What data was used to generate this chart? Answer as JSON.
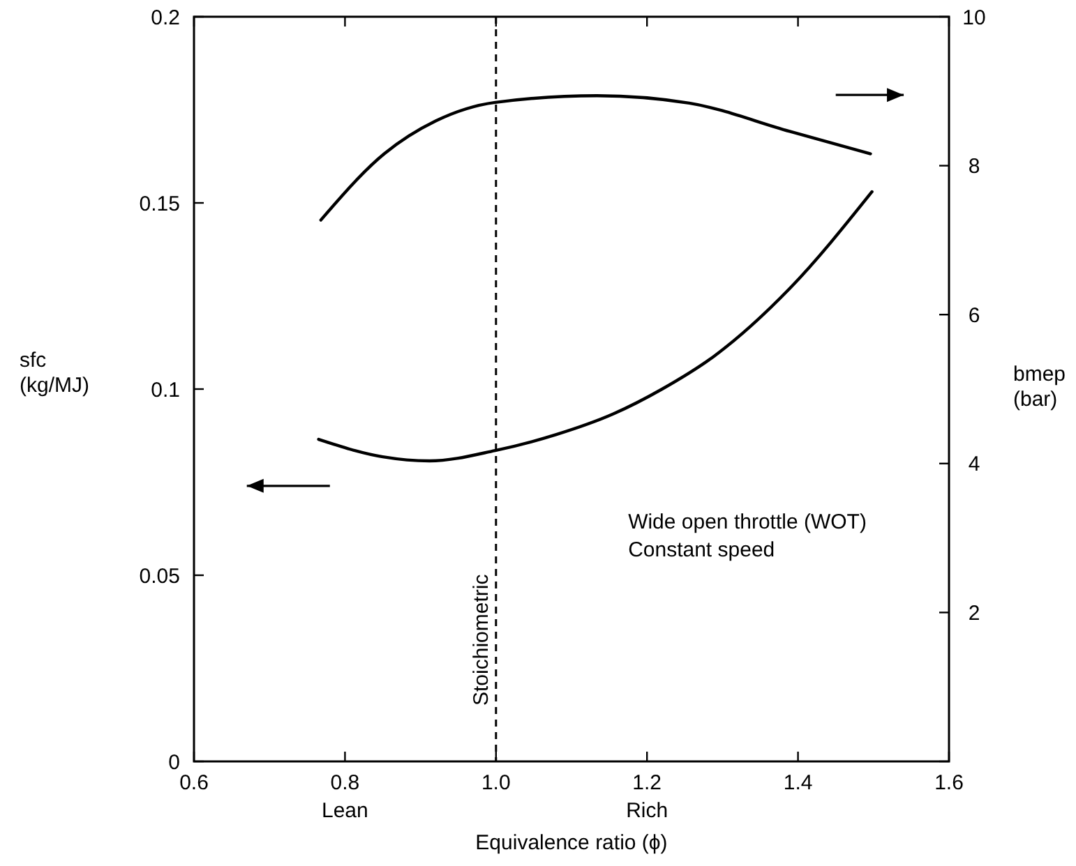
{
  "chart_data": {
    "type": "line",
    "xlabel": "Equivalence ratio (ϕ)",
    "ylabel": "sfc\n(kg/MJ)",
    "y2label": "bmep\n(bar)",
    "xlim": [
      0.6,
      1.6
    ],
    "xticks": [
      0.6,
      0.8,
      {
        "value": 1.0,
        "label": "1.0"
      },
      1.2,
      1.4,
      1.6
    ],
    "ylim": [
      0,
      0.2
    ],
    "yticks": [
      0,
      0.05,
      0.1,
      0.15,
      0.2
    ],
    "y2lim": [
      0,
      10
    ],
    "y2ticks": [
      {
        "value": 0,
        "label": null
      },
      2,
      4,
      6,
      8,
      10
    ],
    "series": [
      {
        "color": "#000000",
        "x": [
          0.765,
          0.85,
          0.912,
          0.999,
          1.08,
          1.155,
          1.22,
          1.29,
          1.389,
          1.498
        ],
        "values": [
          0.0865,
          0.0818,
          0.0807,
          0.0835,
          0.0878,
          0.0933,
          0.1,
          0.109,
          0.127,
          0.153
        ]
      },
      {
        "color": "#000000",
        "axis": "y2",
        "x": [
          0.768,
          0.852,
          0.92,
          0.999,
          1.134,
          1.256,
          1.389,
          1.496
        ],
        "values": [
          7.27,
          8.16,
          8.6,
          8.85,
          8.94,
          8.84,
          8.46,
          8.16
        ]
      }
    ],
    "ref_lines": [
      {
        "axis": "x",
        "value": 1.0,
        "label": "Stoichiometric",
        "line_style": "dashed",
        "color": "#000000"
      }
    ],
    "annotations": [
      "Wide open throttle (WOT)\nConstant speed",
      "Lean",
      "Rich"
    ],
    "line_style": "solid",
    "marker": "none",
    "grid": false
  }
}
